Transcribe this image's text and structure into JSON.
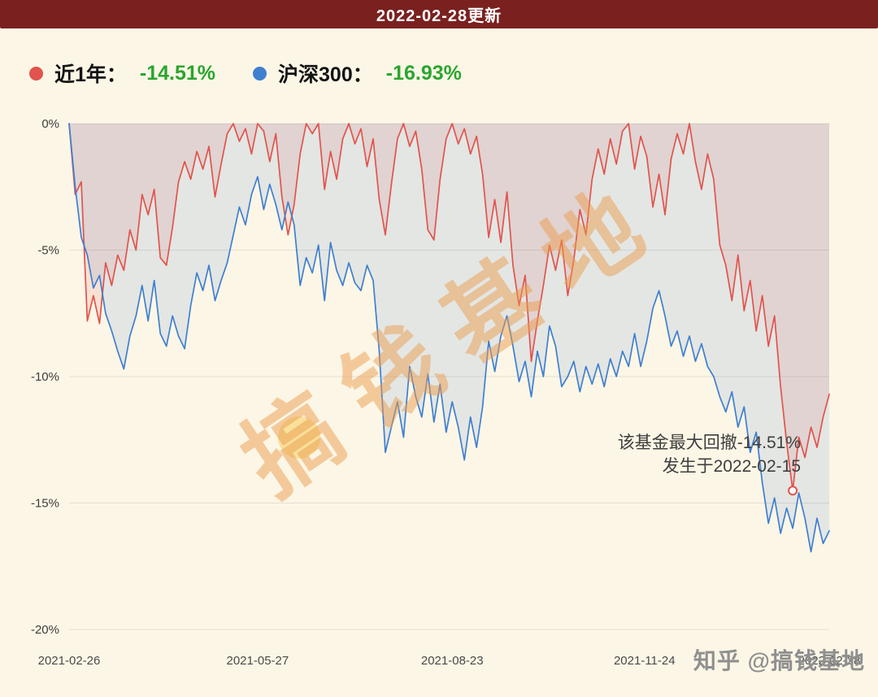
{
  "banner": {
    "title": "2022-02-28更新"
  },
  "legend": {
    "fund": {
      "label": "近1年：",
      "value": "-14.51%",
      "color": "#e2534d"
    },
    "benchmark": {
      "label": "沪深300：",
      "value": "-16.93%",
      "color": "#3f7fd0"
    }
  },
  "annotation": {
    "line1": "该基金最大回撤-14.51%",
    "line2": "发生于2022-02-15"
  },
  "watermarks": {
    "diagonal": "搞钱基地",
    "corner": "知乎 @搞钱基地"
  },
  "colors": {
    "value_green": "#2aa52f",
    "banner_bg": "#7a2120",
    "grid": "#e4dfd2",
    "axis_text": "#3c3c3c",
    "fund_red": "#e2534d",
    "benchmark_blue": "#3f7fd0",
    "watermark_orange": "#eb9c4d"
  },
  "chart_data": {
    "type": "line",
    "ylim": [
      -20,
      0
    ],
    "grid": true,
    "legend_position": "top-left",
    "y_ticks": [
      {
        "label": "0%",
        "value": 0
      },
      {
        "label": "-5%",
        "value": -5
      },
      {
        "label": "-10%",
        "value": -10
      },
      {
        "label": "-15%",
        "value": -15
      },
      {
        "label": "-20%",
        "value": -20
      }
    ],
    "x_ticks": [
      {
        "label": "2021-02-26",
        "pos": 0
      },
      {
        "label": "2021-05-27",
        "pos": 0.248
      },
      {
        "label": "2021-08-23",
        "pos": 0.504
      },
      {
        "label": "2021-11-24",
        "pos": 0.757
      },
      {
        "label": "2022-02-28",
        "pos": 1
      }
    ],
    "series": [
      {
        "key": "fund",
        "name": "近1年",
        "color": "#e2534d",
        "fill": "rgba(226,83,77,0.13)",
        "values": [
          0,
          -2.8,
          -2.3,
          -7.8,
          -6.8,
          -7.9,
          -5.5,
          -6.4,
          -5.2,
          -5.8,
          -4.2,
          -5.0,
          -2.8,
          -3.6,
          -2.6,
          -5.3,
          -5.6,
          -4.1,
          -2.3,
          -1.5,
          -2.2,
          -1.1,
          -1.8,
          -0.9,
          -2.9,
          -1.6,
          -0.4,
          0,
          -0.7,
          -0.2,
          -1.2,
          0,
          -0.3,
          -1.5,
          -0.4,
          -2.9,
          -4.4,
          -3.2,
          -1.2,
          0,
          -0.4,
          0,
          -2.6,
          -1.1,
          -2.2,
          -0.6,
          0,
          -0.8,
          -0.2,
          -1.7,
          -0.6,
          -3.0,
          -4.4,
          -2.4,
          -0.6,
          0,
          -0.9,
          -0.3,
          -1.8,
          -4.2,
          -4.6,
          -2.2,
          -0.6,
          0,
          -0.8,
          -0.2,
          -1.2,
          -0.5,
          -2.0,
          -4.5,
          -3.0,
          -4.7,
          -2.7,
          -5.6,
          -7.2,
          -6.0,
          -9.4,
          -7.8,
          -6.4,
          -4.8,
          -5.8,
          -4.6,
          -6.8,
          -5.4,
          -3.4,
          -4.4,
          -2.2,
          -1.0,
          -2.0,
          -0.6,
          -1.6,
          -0.3,
          0,
          -1.8,
          -0.5,
          -1.3,
          -3.3,
          -2.0,
          -3.6,
          -1.4,
          -0.4,
          -1.2,
          0,
          -1.5,
          -2.6,
          -1.2,
          -2.2,
          -4.8,
          -5.6,
          -7.0,
          -5.2,
          -7.4,
          -6.2,
          -8.2,
          -6.8,
          -8.8,
          -7.6,
          -10.4,
          -12.6,
          -14.51,
          -12.4,
          -13.2,
          -12.0,
          -12.8,
          -11.6,
          -10.7
        ]
      },
      {
        "key": "benchmark",
        "name": "沪深300",
        "color": "#3f7fd0",
        "fill": "rgba(63,127,208,0.13)",
        "values": [
          0,
          -2.5,
          -4.5,
          -5.2,
          -6.5,
          -6.0,
          -7.5,
          -8.2,
          -9.0,
          -9.7,
          -8.4,
          -7.6,
          -6.4,
          -7.8,
          -6.2,
          -8.3,
          -8.8,
          -7.6,
          -8.4,
          -8.9,
          -7.2,
          -5.9,
          -6.6,
          -5.6,
          -7.0,
          -6.2,
          -5.5,
          -4.4,
          -3.3,
          -4.0,
          -2.8,
          -2.1,
          -3.4,
          -2.4,
          -3.2,
          -4.2,
          -3.1,
          -4.0,
          -6.4,
          -5.3,
          -5.9,
          -4.8,
          -7.0,
          -4.7,
          -5.8,
          -6.4,
          -5.5,
          -6.3,
          -6.6,
          -5.6,
          -6.2,
          -9.0,
          -13.0,
          -12.0,
          -11.0,
          -12.4,
          -9.6,
          -10.8,
          -11.6,
          -9.9,
          -11.8,
          -10.3,
          -12.2,
          -11.0,
          -12.0,
          -13.3,
          -11.6,
          -12.8,
          -11.2,
          -8.6,
          -9.8,
          -8.4,
          -7.6,
          -8.8,
          -10.2,
          -9.4,
          -10.8,
          -9.0,
          -10.0,
          -8.0,
          -8.8,
          -10.4,
          -10.0,
          -9.4,
          -10.6,
          -9.6,
          -10.3,
          -9.5,
          -10.4,
          -9.3,
          -10.0,
          -9.0,
          -9.6,
          -8.3,
          -9.6,
          -8.6,
          -7.3,
          -6.6,
          -7.6,
          -8.8,
          -8.2,
          -9.2,
          -8.4,
          -9.4,
          -8.7,
          -9.6,
          -10.0,
          -10.8,
          -11.4,
          -10.6,
          -12.0,
          -11.2,
          -13.0,
          -12.2,
          -14.2,
          -15.8,
          -14.8,
          -16.2,
          -15.2,
          -16.0,
          -14.6,
          -15.6,
          -16.93,
          -15.6,
          -16.6,
          -16.1
        ]
      }
    ],
    "marker": {
      "series_key": "fund",
      "index": 119,
      "value": -14.51,
      "date": "2022-02-15",
      "note": "max drawdown point"
    }
  }
}
